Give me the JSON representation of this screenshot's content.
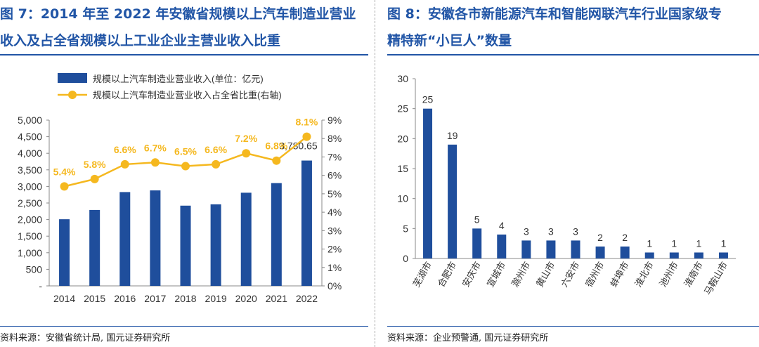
{
  "left": {
    "title_line1": "图 7：2014 年至 2022 年安徽省规模以上汽车制造业营业",
    "title_line2": "收入及占全省规模以上工业企业主营业收入比重",
    "source": "资料来源：安徽省统计局, 国元证券研究所"
  },
  "right": {
    "title_line1": "图 8：安徽各市新能源汽车和智能网联汽车行业国家级专",
    "title_line2": "精特新“小巨人”数量",
    "source": "资料来源：企业预警通, 国元证券研究所"
  },
  "colors": {
    "bar": "#1f4e9c",
    "line": "#f5b81f",
    "title": "#2155a6",
    "label_orange": "#f5b81f"
  },
  "chart_data": [
    {
      "type": "bar+line",
      "categories": [
        "2014",
        "2015",
        "2016",
        "2017",
        "2018",
        "2019",
        "2020",
        "2021",
        "2022"
      ],
      "series": [
        {
          "name": "规模以上汽车制造业营业收入(单位：亿元)",
          "type": "bar",
          "axis": "left",
          "values": [
            2010,
            2290,
            2830,
            2880,
            2420,
            2460,
            2810,
            3100,
            3780.65
          ]
        },
        {
          "name": "规模以上汽车制造业营业收入占全省比重(右轴)",
          "type": "line",
          "axis": "right",
          "values": [
            5.4,
            5.8,
            6.6,
            6.7,
            6.5,
            6.6,
            7.2,
            6.8,
            8.1
          ]
        }
      ],
      "line_labels": [
        "5.4%",
        "5.8%",
        "6.6%",
        "6.7%",
        "6.5%",
        "6.6%",
        "7.2%",
        "6.8%",
        "8.1%"
      ],
      "bar_label": {
        "index": 8,
        "text": "3,780.65"
      },
      "y_left": {
        "min": 0,
        "max": 5000,
        "ticks": [
          "-",
          "500",
          "1,000",
          "1,500",
          "2,000",
          "2,500",
          "3,000",
          "3,500",
          "4,000",
          "4,500",
          "5,000"
        ]
      },
      "y_right": {
        "min": 0,
        "max": 9,
        "ticks": [
          "0%",
          "1%",
          "2%",
          "3%",
          "4%",
          "5%",
          "6%",
          "7%",
          "8%",
          "9%"
        ]
      },
      "legend_position": "top"
    },
    {
      "type": "bar",
      "categories": [
        "芜湖市",
        "合肥市",
        "安庆市",
        "宣城市",
        "滁州市",
        "黄山市",
        "六安市",
        "宿州市",
        "蚌埠市",
        "淮北市",
        "池州市",
        "淮南市",
        "马鞍山市"
      ],
      "values": [
        25,
        19,
        5,
        4,
        3,
        3,
        3,
        2,
        2,
        1,
        1,
        1,
        1
      ],
      "value_labels": [
        "25",
        "19",
        "5",
        "4",
        "3",
        "3",
        "3",
        "2",
        "2",
        "1",
        "1",
        "1",
        "1"
      ],
      "y": {
        "min": 0,
        "max": 30,
        "ticks": [
          "0",
          "5",
          "10",
          "15",
          "20",
          "25",
          "30"
        ]
      }
    }
  ]
}
